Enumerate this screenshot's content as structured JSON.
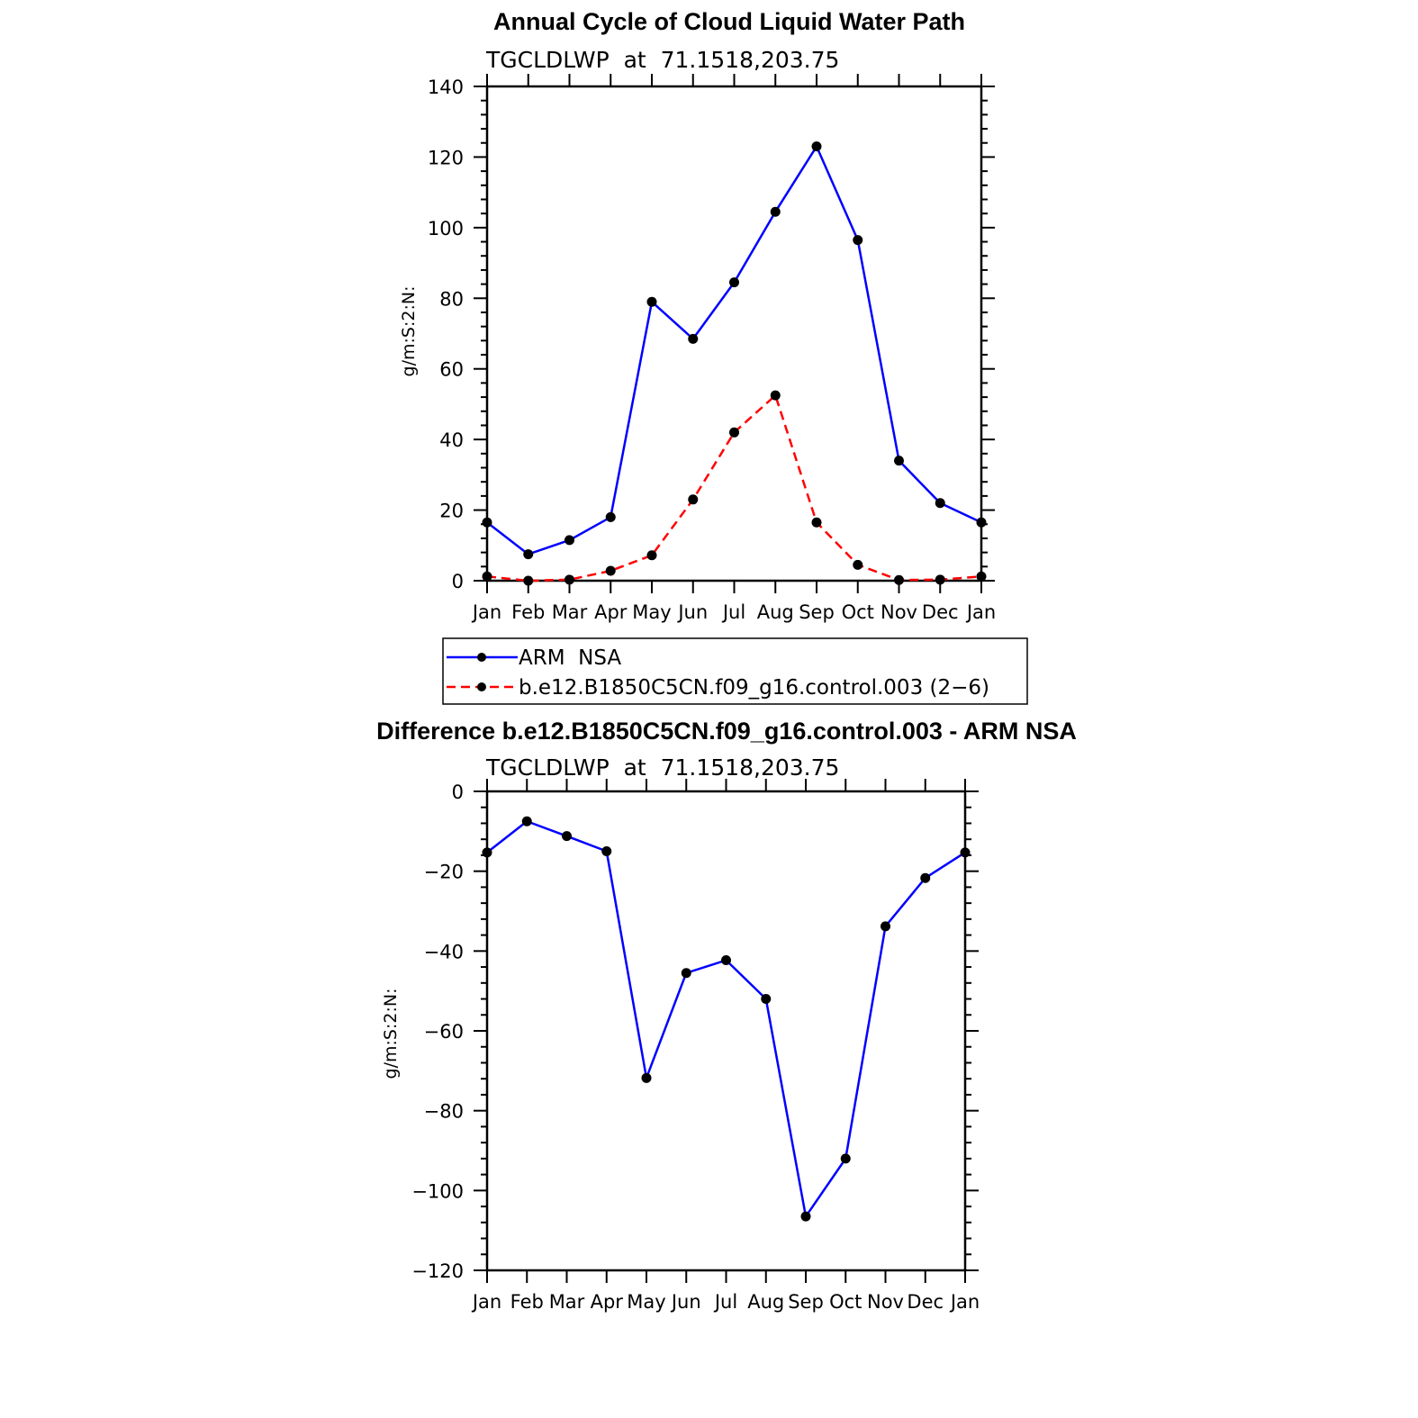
{
  "chart_data": [
    {
      "type": "line",
      "title": "Annual Cycle of Cloud Liquid Water Path",
      "subtitle": "TGCLDLWP  at  71.1518,203.75",
      "ylabel": "g/m:S:2:N:",
      "categories": [
        "Jan",
        "Feb",
        "Mar",
        "Apr",
        "May",
        "Jun",
        "Jul",
        "Aug",
        "Sep",
        "Oct",
        "Nov",
        "Dec",
        "Jan"
      ],
      "ylim": [
        0,
        140
      ],
      "yticks": [
        0,
        20,
        40,
        60,
        80,
        100,
        120,
        140
      ],
      "series": [
        {
          "name": "ARM  NSA",
          "color": "#0000ff",
          "dash": "solid",
          "values": [
            16.5,
            7.5,
            11.5,
            18,
            79,
            68.5,
            84.5,
            104.5,
            123,
            96.5,
            34,
            22,
            16.5
          ]
        },
        {
          "name": "b.e12.B1850C5CN.f09_g16.control.003 (2−6)",
          "color": "#ff0000",
          "dash": "dashed",
          "values": [
            1.2,
            0,
            0.3,
            2.8,
            7.2,
            23,
            42,
            52.5,
            16.5,
            4.5,
            0.2,
            0.3,
            1.2
          ]
        }
      ],
      "legend_position": "below-plot"
    },
    {
      "type": "line",
      "title": "Difference b.e12.B1850C5CN.f09_g16.control.003 - ARM NSA",
      "subtitle": "TGCLDLWP  at  71.1518,203.75",
      "ylabel": "g/m:S:2:N:",
      "categories": [
        "Jan",
        "Feb",
        "Mar",
        "Apr",
        "May",
        "Jun",
        "Jul",
        "Aug",
        "Sep",
        "Oct",
        "Nov",
        "Dec",
        "Jan"
      ],
      "ylim": [
        -120,
        0
      ],
      "yticks": [
        0,
        -20,
        -40,
        -60,
        -80,
        -100,
        -120
      ],
      "series": [
        {
          "color": "#0000ff",
          "dash": "solid",
          "values": [
            -15.3,
            -7.5,
            -11.2,
            -15,
            -71.8,
            -45.5,
            -42.3,
            -52,
            -106.5,
            -92,
            -33.8,
            -21.7,
            -15.3
          ]
        }
      ]
    }
  ]
}
